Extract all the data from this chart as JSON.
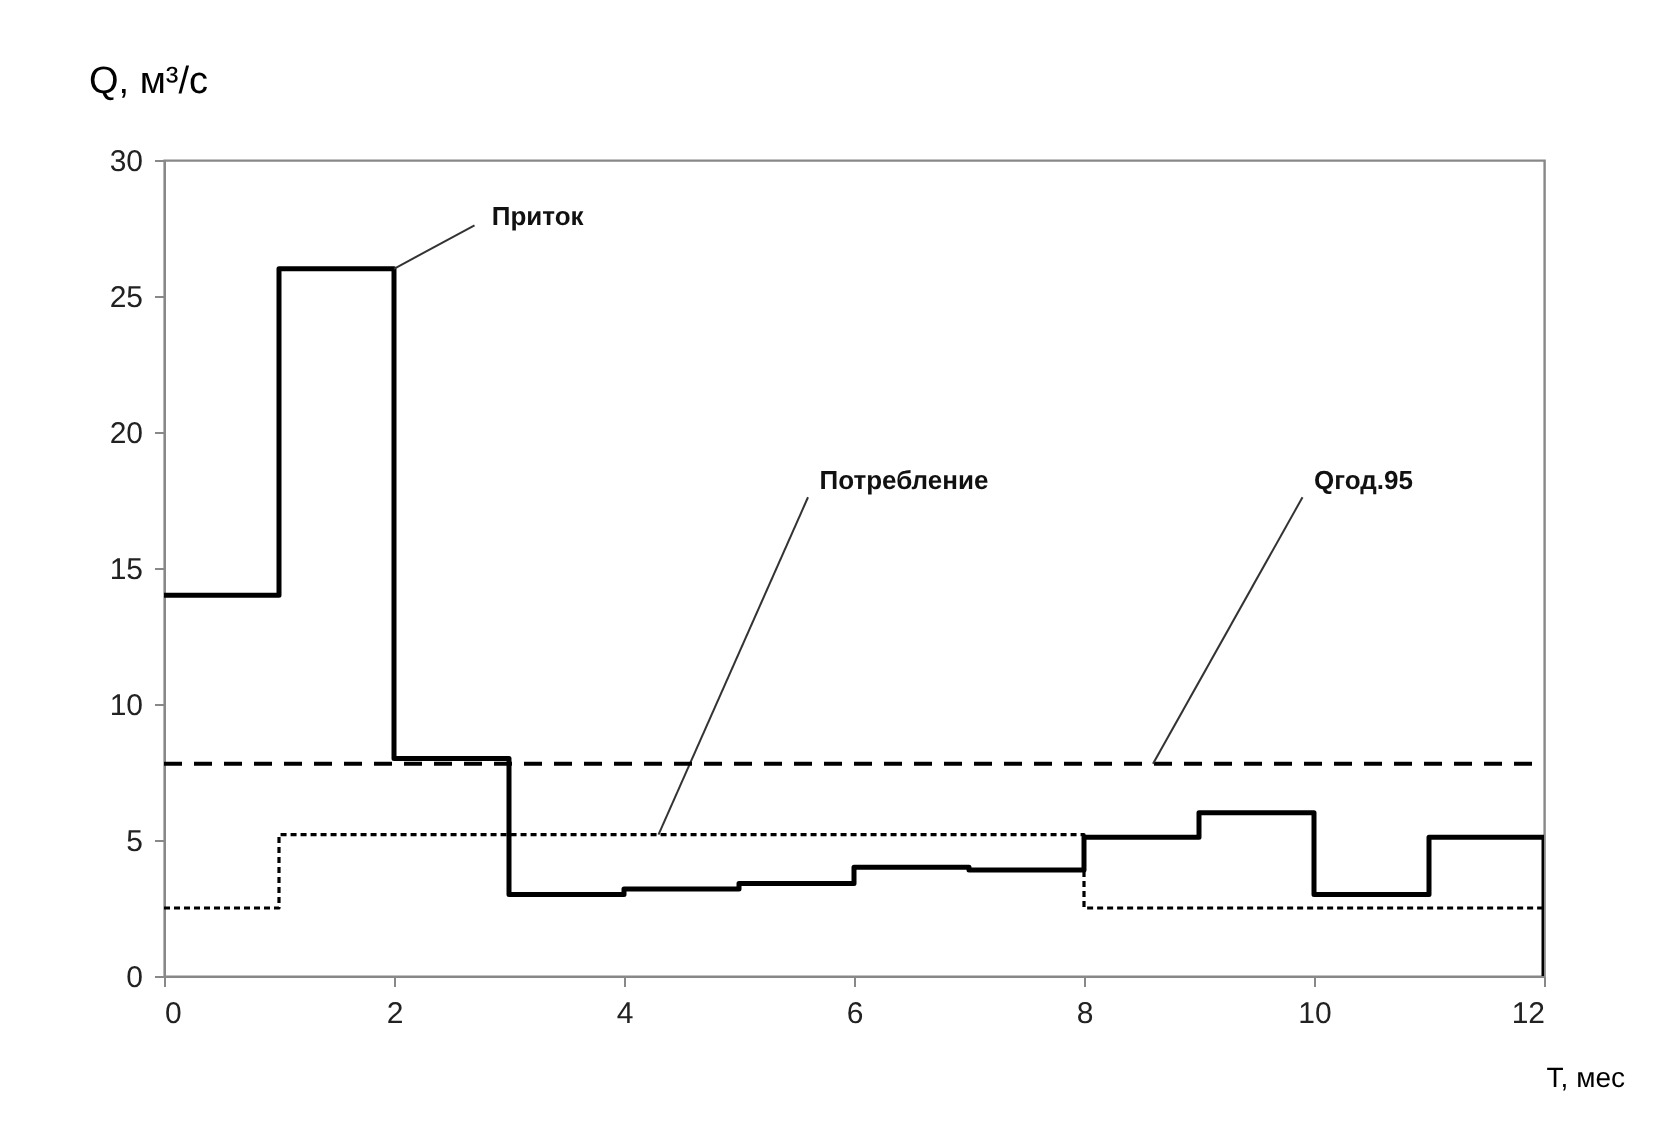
{
  "chart_data": {
    "type": "step",
    "xlabel": "T, мес",
    "ylabel": "Q, м³/с",
    "xlim": [
      0,
      12
    ],
    "xticks": [
      0,
      2,
      4,
      6,
      8,
      10,
      12
    ],
    "ylim": [
      0,
      30
    ],
    "yticks": [
      0,
      5,
      10,
      15,
      20,
      25,
      30
    ],
    "grid": false,
    "legend": false,
    "marker": "none",
    "series": [
      {
        "name": "Приток",
        "color": "#000000",
        "line_style": "solid",
        "x": [
          0,
          1,
          2,
          3,
          4,
          5,
          6,
          7,
          8,
          9,
          10,
          11,
          12
        ],
        "values": [
          14,
          26,
          8,
          3,
          3.2,
          3.4,
          4,
          3.9,
          5.1,
          6,
          3,
          5.1,
          0
        ]
      },
      {
        "name": "Потребление",
        "color": "#000000",
        "line_style": "dotted",
        "x": [
          0,
          1,
          2,
          3,
          4,
          5,
          6,
          7,
          8,
          9,
          10,
          11,
          12
        ],
        "values": [
          2.5,
          5.2,
          5.2,
          5.2,
          5.2,
          5.2,
          5.2,
          5.2,
          2.5,
          2.5,
          2.5,
          2.5,
          2.5
        ]
      },
      {
        "name": "Qгод.95",
        "color": "#000000",
        "line_style": "dashed",
        "x": [
          0,
          12
        ],
        "values": [
          7.8,
          7.8
        ]
      }
    ]
  }
}
